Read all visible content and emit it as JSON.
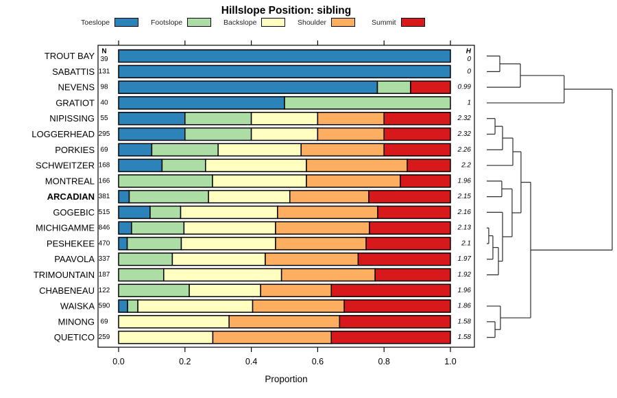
{
  "title": "Hillslope Position: sibling",
  "columns": {
    "n_header": "N",
    "h_header": "H"
  },
  "axis": {
    "label": "Proportion",
    "ticks": [
      "0.0",
      "0.2",
      "0.4",
      "0.6",
      "0.8",
      "1.0"
    ],
    "xlim": [
      0,
      1
    ]
  },
  "chart_data": {
    "type": "bar",
    "orientation": "horizontal",
    "stacked": true,
    "title": "Hillslope Position: sibling",
    "xlabel": "Proportion",
    "xlim": [
      0,
      1
    ],
    "legend_position": "top",
    "categories": [
      "TROUT BAY",
      "SABATTIS",
      "NEVENS",
      "GRATIOT",
      "NIPISSING",
      "LOGGERHEAD",
      "PORKIES",
      "SCHWEITZER",
      "MONTREAL",
      "ARCADIAN",
      "GOGEBIC",
      "MICHIGAMME",
      "PESHEKEE",
      "PAAVOLA",
      "TRIMOUNTAIN",
      "CHABENEAU",
      "WAISKA",
      "MINONG",
      "QUETICO"
    ],
    "bold_category": "ARCADIAN",
    "n_values": [
      39,
      131,
      98,
      40,
      55,
      295,
      69,
      168,
      166,
      381,
      515,
      846,
      470,
      337,
      187,
      122,
      590,
      69,
      259
    ],
    "h_values": [
      "0",
      "0",
      "0.99",
      "1",
      "2.32",
      "2.32",
      "2.26",
      "2.2",
      "1.96",
      "2.15",
      "2.16",
      "2.13",
      "2.1",
      "1.97",
      "1.92",
      "1.96",
      "1.86",
      "1.58",
      "1.58"
    ],
    "series": [
      {
        "name": "Toeslope",
        "color": "#2b83ba",
        "values": [
          1,
          1,
          0.78,
          0.5,
          0.2,
          0.2,
          0.1,
          0.131,
          0,
          0.032,
          0.095,
          0.039,
          0.026,
          0,
          0,
          0,
          0.027,
          0,
          0
        ]
      },
      {
        "name": "Footslope",
        "color": "#abdda4",
        "values": [
          0,
          0,
          0.1,
          0.5,
          0.2,
          0.2,
          0.2,
          0.131,
          0.283,
          0.239,
          0.092,
          0.158,
          0.163,
          0.162,
          0.136,
          0.213,
          0.031,
          0,
          0
        ]
      },
      {
        "name": "Backslope",
        "color": "#ffffbf",
        "values": [
          0,
          0,
          0,
          0,
          0.2,
          0.2,
          0.25,
          0.304,
          0.283,
          0.245,
          0.292,
          0.276,
          0.284,
          0.28,
          0.355,
          0.215,
          0.346,
          0.333,
          0.284
        ]
      },
      {
        "name": "Shoulder",
        "color": "#fdae61",
        "values": [
          0,
          0,
          0,
          0,
          0.2,
          0.2,
          0.25,
          0.304,
          0.283,
          0.238,
          0.302,
          0.283,
          0.273,
          0.28,
          0.282,
          0.213,
          0.276,
          0.333,
          0.357
        ]
      },
      {
        "name": "Summit",
        "color": "#d7191c",
        "values": [
          0,
          0,
          0.12,
          0,
          0.2,
          0.2,
          0.2,
          0.13,
          0.151,
          0.246,
          0.219,
          0.244,
          0.254,
          0.278,
          0.227,
          0.359,
          0.32,
          0.334,
          0.359
        ]
      }
    ],
    "dendrogram": {
      "merges": [
        {
          "a": "L0",
          "b": "L1",
          "h": 0.104
        },
        {
          "a": "M0",
          "b": "L2",
          "h": 0.268
        },
        {
          "a": "M1",
          "b": "L3",
          "h": 0.617
        },
        {
          "a": "L4",
          "b": "L5",
          "h": 0.066
        },
        {
          "a": "M3",
          "b": "L6",
          "h": 0.126
        },
        {
          "a": "M4",
          "b": "L7",
          "h": 0.208
        },
        {
          "a": "L8",
          "b": "L9",
          "h": 0.12
        },
        {
          "a": "L11",
          "b": "L12",
          "h": 0.016
        },
        {
          "a": "M7",
          "b": "L13",
          "h": 0.049
        },
        {
          "a": "M8",
          "b": "L14",
          "h": 0.093
        },
        {
          "a": "L10",
          "b": "M9",
          "h": 0.126
        },
        {
          "a": "M6",
          "b": "M10",
          "h": 0.202
        },
        {
          "a": "M5",
          "b": "M11",
          "h": 0.273
        },
        {
          "a": "L17",
          "b": "L18",
          "h": 0.066
        },
        {
          "a": "L16",
          "b": "M13",
          "h": 0.109
        },
        {
          "a": "M12",
          "b": "M14",
          "h": 0.35
        },
        {
          "a": "M2",
          "b": "M15",
          "h": 1.0
        }
      ]
    }
  }
}
